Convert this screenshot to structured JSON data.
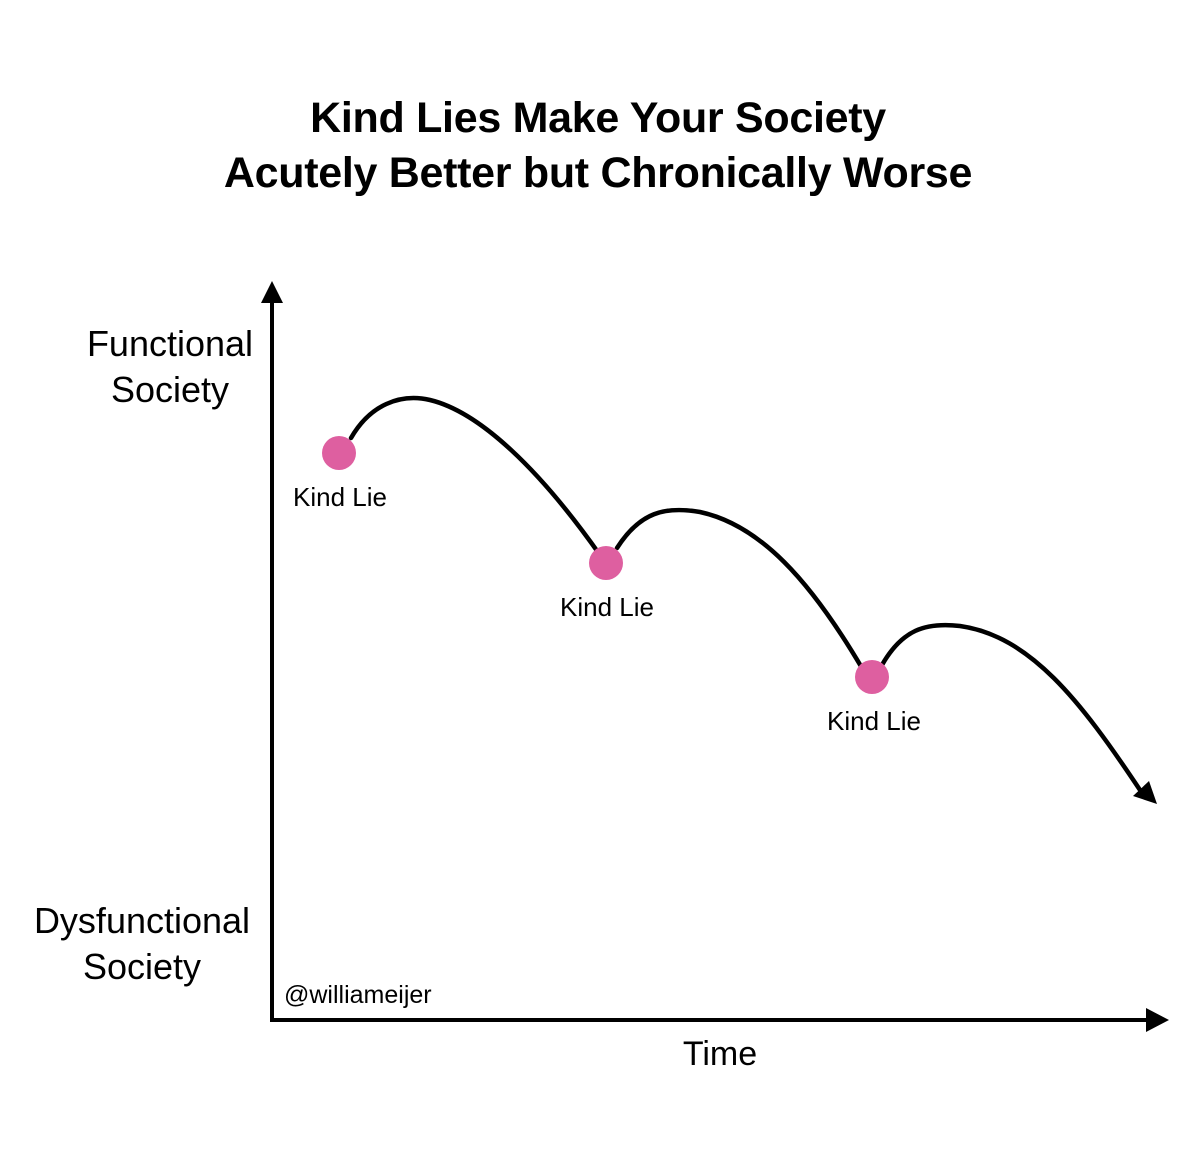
{
  "title_line1": "Kind Lies Make Your Society",
  "title_line2": "Acutely Better but Chronically Worse",
  "y_axis": {
    "top_line1": "Functional",
    "top_line2": "Society",
    "bottom_line1": "Dysfunctional",
    "bottom_line2": "Society"
  },
  "x_axis_label": "Time",
  "watermark": "@williameijer",
  "points": [
    {
      "label": "Kind Lie",
      "color": "#de5fa0"
    },
    {
      "label": "Kind Lie",
      "color": "#de5fa0"
    },
    {
      "label": "Kind Lie",
      "color": "#de5fa0"
    }
  ],
  "colors": {
    "line": "#000000",
    "point": "#de5fa0",
    "background": "#ffffff"
  }
}
